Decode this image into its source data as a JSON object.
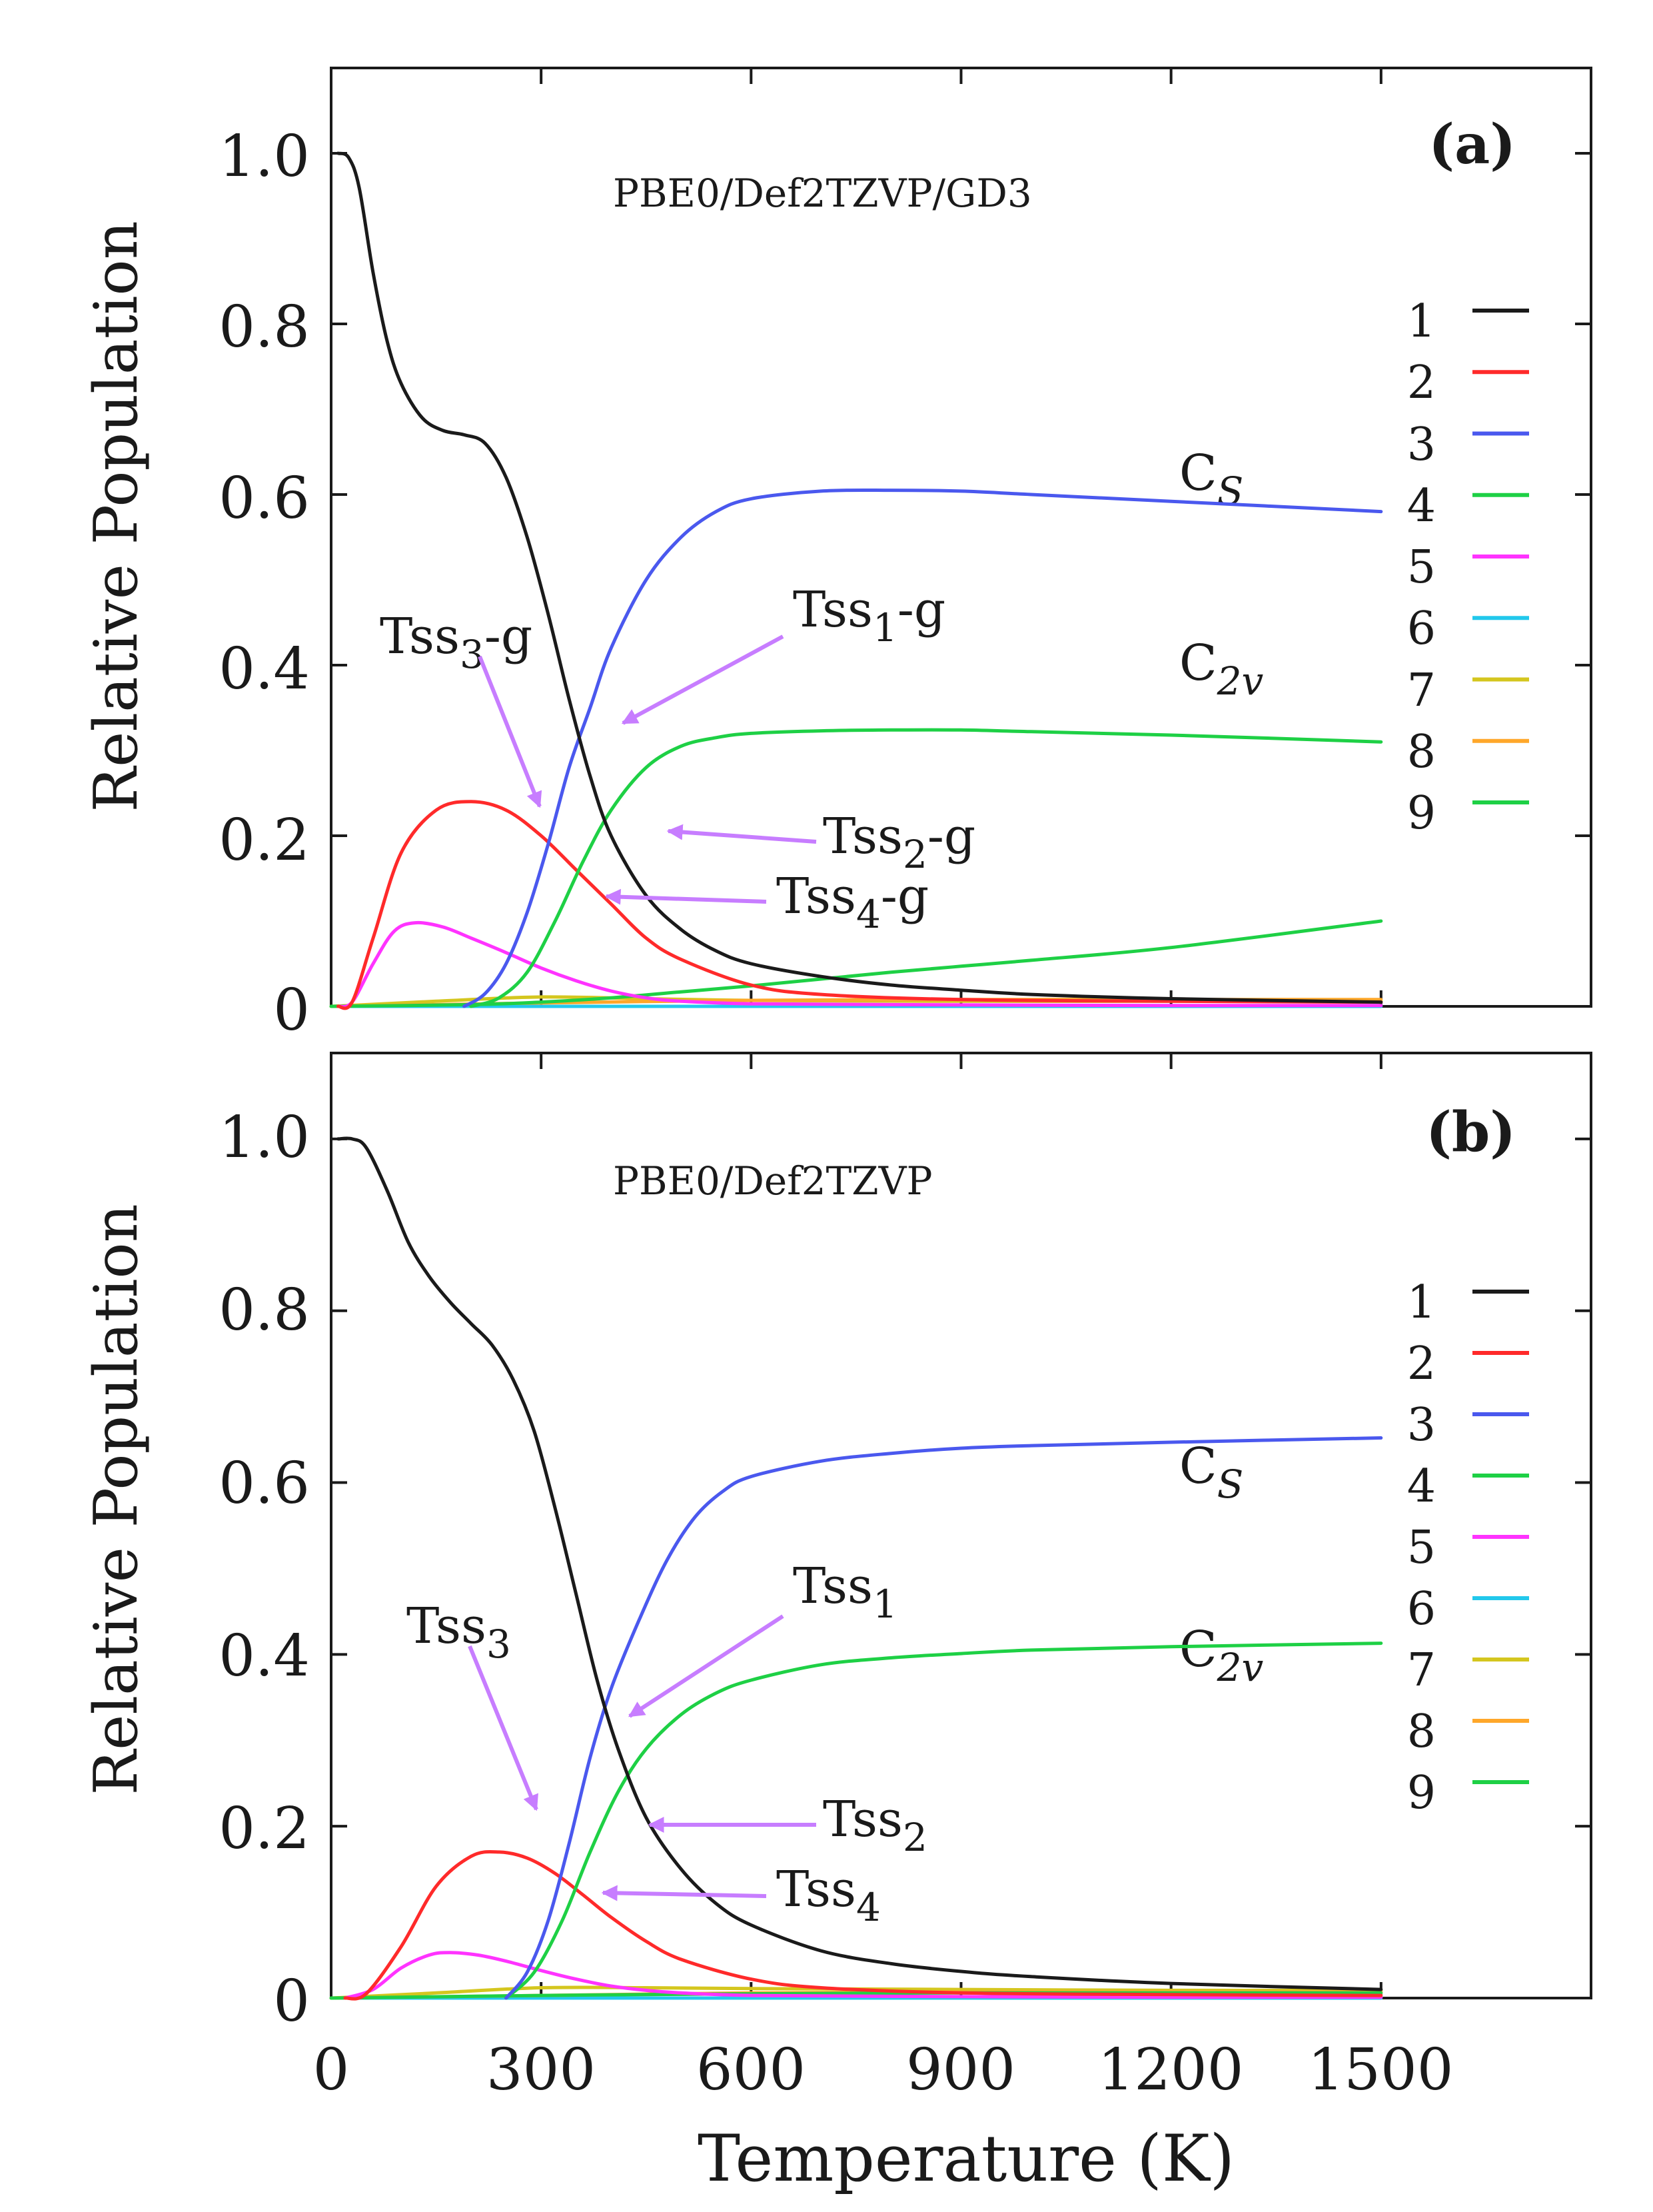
{
  "chart_data": [
    {
      "type": "line",
      "panel_label": "(a)",
      "method": "PBE0/Def2TZVP/GD3",
      "ylabel": "Relative Population",
      "xlabel": "",
      "xlim": [
        0,
        1800
      ],
      "ylim": [
        0,
        1.1
      ],
      "xticks": [
        0,
        300,
        600,
        900,
        1200,
        1500
      ],
      "yticks": [
        0,
        0.2,
        0.4,
        0.6,
        0.8,
        1.0
      ],
      "ytick_labels": [
        "0",
        "0.2",
        "0.4",
        "0.6",
        "0.8",
        "1.0"
      ],
      "legend": [
        "1",
        "2",
        "3",
        "4",
        "5",
        "6",
        "7",
        "8",
        "9"
      ],
      "colors": [
        "#1a1a1a",
        "#ff2a2a",
        "#4a58ee",
        "#1ed045",
        "#ff33ff",
        "#22c8ec",
        "#d4c61e",
        "#ffa72a",
        "#1ed045"
      ],
      "series": [
        {
          "name": "1",
          "x": [
            10,
            25,
            40,
            60,
            80,
            100,
            130,
            160,
            190,
            220,
            250,
            280,
            310,
            340,
            370,
            400,
            450,
            500,
            550,
            600,
            700,
            800,
            900,
            1000,
            1200,
            1500
          ],
          "y": [
            1.0,
            0.995,
            0.96,
            0.86,
            0.78,
            0.73,
            0.69,
            0.675,
            0.67,
            0.66,
            0.62,
            0.55,
            0.46,
            0.36,
            0.27,
            0.2,
            0.13,
            0.09,
            0.065,
            0.05,
            0.035,
            0.025,
            0.019,
            0.014,
            0.009,
            0.005
          ]
        },
        {
          "name": "2",
          "x": [
            10,
            30,
            60,
            100,
            150,
            200,
            250,
            300,
            350,
            400,
            450,
            500,
            600,
            700,
            900,
            1200,
            1500
          ],
          "y": [
            0.0,
            0.005,
            0.08,
            0.18,
            0.23,
            0.24,
            0.23,
            0.2,
            0.16,
            0.12,
            0.08,
            0.055,
            0.025,
            0.014,
            0.008,
            0.006,
            0.005
          ]
        },
        {
          "name": "3",
          "x": [
            190,
            220,
            250,
            280,
            310,
            340,
            370,
            400,
            450,
            500,
            550,
            600,
            700,
            800,
            900,
            1000,
            1200,
            1500
          ],
          "y": [
            0.0,
            0.015,
            0.05,
            0.11,
            0.19,
            0.28,
            0.35,
            0.42,
            0.5,
            0.55,
            0.58,
            0.595,
            0.604,
            0.605,
            0.604,
            0.6,
            0.592,
            0.58
          ]
        },
        {
          "name": "4",
          "x": [
            200,
            240,
            280,
            320,
            360,
            400,
            450,
            500,
            550,
            600,
            700,
            800,
            900,
            1000,
            1200,
            1500
          ],
          "y": [
            0.0,
            0.01,
            0.04,
            0.1,
            0.17,
            0.23,
            0.28,
            0.305,
            0.315,
            0.32,
            0.323,
            0.324,
            0.324,
            0.322,
            0.318,
            0.31
          ]
        },
        {
          "name": "5",
          "x": [
            10,
            30,
            60,
            90,
            120,
            160,
            200,
            250,
            300,
            350,
            400,
            450,
            500,
            600,
            800,
            1200,
            1500
          ],
          "y": [
            0.0,
            0.005,
            0.05,
            0.088,
            0.098,
            0.093,
            0.08,
            0.063,
            0.045,
            0.03,
            0.018,
            0.01,
            0.006,
            0.003,
            0.002,
            0.001,
            0.001
          ]
        },
        {
          "name": "6",
          "x": [
            0,
            1500
          ],
          "y": [
            0.0,
            0.0
          ]
        },
        {
          "name": "7",
          "x": [
            0,
            150,
            300,
            450,
            600,
            900,
            1200,
            1500
          ],
          "y": [
            0.0,
            0.006,
            0.011,
            0.009,
            0.007,
            0.006,
            0.006,
            0.006
          ]
        },
        {
          "name": "8",
          "x": [
            0,
            300,
            600,
            900,
            1200,
            1500
          ],
          "y": [
            0.0,
            0.004,
            0.007,
            0.008,
            0.008,
            0.008
          ]
        },
        {
          "name": "9",
          "x": [
            0,
            200,
            300,
            400,
            500,
            600,
            700,
            800,
            900,
            1000,
            1200,
            1500
          ],
          "y": [
            0.0,
            0.002,
            0.005,
            0.01,
            0.017,
            0.024,
            0.032,
            0.04,
            0.047,
            0.054,
            0.069,
            0.1
          ]
        }
      ],
      "annotations": [
        {
          "base": "C",
          "sub": "S",
          "italic_sub": true
        },
        {
          "base": "C",
          "sub": "2v",
          "italic_sub": true
        },
        {
          "base": "Tss",
          "sub": "3",
          "suffix": "-g",
          "arrow_to": [
            305,
            0.23
          ]
        },
        {
          "base": "Tss",
          "sub": "1",
          "suffix": "-g",
          "arrow_to": [
            410,
            0.34
          ]
        },
        {
          "base": "Tss",
          "sub": "2",
          "suffix": "-g",
          "arrow_to": [
            455,
            0.23
          ]
        },
        {
          "base": "Tss",
          "sub": "4",
          "suffix": "-g",
          "arrow_to": [
            385,
            0.14
          ]
        }
      ]
    },
    {
      "type": "line",
      "panel_label": "(b)",
      "method": "PBE0/Def2TZVP",
      "ylabel": "Relative Population",
      "xlabel": "Temperature (K)",
      "xlim": [
        0,
        1800
      ],
      "ylim": [
        0,
        1.1
      ],
      "xticks": [
        0,
        300,
        600,
        900,
        1200,
        1500
      ],
      "yticks": [
        0,
        0.2,
        0.4,
        0.6,
        0.8,
        1.0
      ],
      "ytick_labels": [
        "0",
        "0.2",
        "0.4",
        "0.6",
        "0.8",
        "1.0"
      ],
      "legend": [
        "1",
        "2",
        "3",
        "4",
        "5",
        "6",
        "7",
        "8",
        "9"
      ],
      "colors": [
        "#1a1a1a",
        "#ff2a2a",
        "#4a58ee",
        "#1ed045",
        "#ff33ff",
        "#22c8ec",
        "#d4c61e",
        "#ffa72a",
        "#1ed045"
      ],
      "series": [
        {
          "name": "1",
          "x": [
            10,
            30,
            50,
            80,
            110,
            140,
            170,
            200,
            230,
            260,
            290,
            320,
            350,
            380,
            410,
            450,
            500,
            550,
            600,
            700,
            800,
            900,
            1000,
            1200,
            1500
          ],
          "y": [
            1.0,
            1.0,
            0.99,
            0.94,
            0.88,
            0.84,
            0.81,
            0.785,
            0.76,
            0.72,
            0.66,
            0.57,
            0.47,
            0.37,
            0.29,
            0.21,
            0.15,
            0.11,
            0.085,
            0.055,
            0.04,
            0.031,
            0.025,
            0.017,
            0.01
          ]
        },
        {
          "name": "2",
          "x": [
            20,
            50,
            100,
            150,
            200,
            240,
            280,
            320,
            360,
            400,
            450,
            500,
            600,
            700,
            900,
            1200,
            1500
          ],
          "y": [
            0.0,
            0.005,
            0.06,
            0.13,
            0.165,
            0.17,
            0.163,
            0.145,
            0.12,
            0.094,
            0.066,
            0.045,
            0.022,
            0.012,
            0.006,
            0.004,
            0.003
          ]
        },
        {
          "name": "3",
          "x": [
            250,
            280,
            310,
            340,
            370,
            400,
            440,
            480,
            520,
            560,
            600,
            700,
            800,
            900,
            1000,
            1200,
            1500
          ],
          "y": [
            0.0,
            0.03,
            0.09,
            0.18,
            0.28,
            0.36,
            0.44,
            0.51,
            0.56,
            0.59,
            0.607,
            0.625,
            0.634,
            0.64,
            0.643,
            0.647,
            0.652
          ]
        },
        {
          "name": "4",
          "x": [
            250,
            290,
            330,
            370,
            410,
            450,
            500,
            550,
            600,
            700,
            800,
            900,
            1000,
            1200,
            1500
          ],
          "y": [
            0.0,
            0.03,
            0.09,
            0.17,
            0.24,
            0.29,
            0.33,
            0.355,
            0.37,
            0.388,
            0.396,
            0.401,
            0.405,
            0.409,
            0.413
          ]
        },
        {
          "name": "5",
          "x": [
            20,
            60,
            100,
            140,
            170,
            210,
            250,
            300,
            350,
            400,
            450,
            500,
            600,
            800,
            1200,
            1500
          ],
          "y": [
            0.0,
            0.01,
            0.035,
            0.05,
            0.053,
            0.05,
            0.043,
            0.032,
            0.022,
            0.014,
            0.009,
            0.006,
            0.003,
            0.002,
            0.001,
            0.001
          ]
        },
        {
          "name": "6",
          "x": [
            0,
            1500
          ],
          "y": [
            0.0,
            0.0
          ]
        },
        {
          "name": "7",
          "x": [
            0,
            150,
            300,
            450,
            600,
            900,
            1200,
            1500
          ],
          "y": [
            0.0,
            0.006,
            0.012,
            0.012,
            0.011,
            0.01,
            0.009,
            0.009
          ]
        },
        {
          "name": "8",
          "x": [
            0,
            300,
            600,
            900,
            1200,
            1500
          ],
          "y": [
            0.0,
            0.003,
            0.006,
            0.007,
            0.007,
            0.007
          ]
        },
        {
          "name": "9",
          "x": [
            0,
            300,
            600,
            900,
            1200,
            1500
          ],
          "y": [
            0.0,
            0.003,
            0.005,
            0.006,
            0.006,
            0.006
          ]
        }
      ],
      "annotations": [
        {
          "base": "C",
          "sub": "S",
          "italic_sub": true
        },
        {
          "base": "C",
          "sub": "2v",
          "italic_sub": true
        },
        {
          "base": "Tss",
          "sub": "3",
          "suffix": "",
          "arrow_to": [
            305,
            0.17
          ]
        },
        {
          "base": "Tss",
          "sub": "1",
          "suffix": "",
          "arrow_to": [
            420,
            0.35
          ]
        },
        {
          "base": "Tss",
          "sub": "2",
          "suffix": "",
          "arrow_to": [
            460,
            0.25
          ]
        },
        {
          "base": "Tss",
          "sub": "4",
          "suffix": "",
          "arrow_to": [
            385,
            0.135
          ]
        }
      ]
    }
  ]
}
